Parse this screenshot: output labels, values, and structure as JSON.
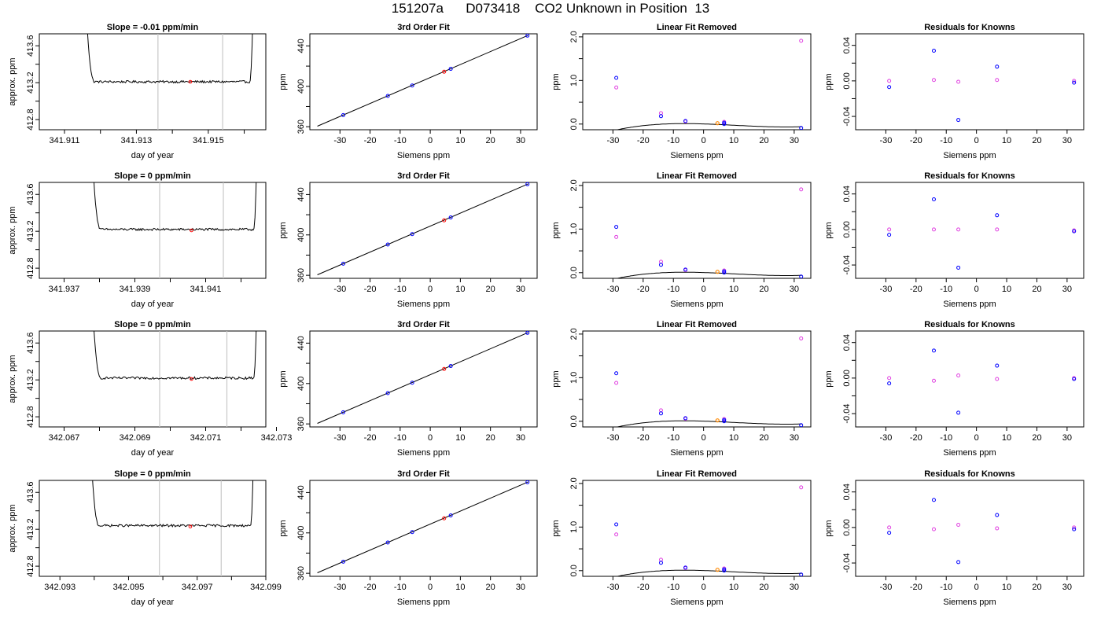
{
  "figure": {
    "title": "151207a      D073418    CO2 Unknown in Position  13",
    "colors": {
      "known": "#0000ff",
      "secondary": "#e040e0",
      "unknown": "#ff0000",
      "unknown_residual": "#ff8800",
      "line": "#000000",
      "marker_line": "#c8c8c8",
      "axis": "#000000"
    }
  },
  "chart_data": [
    {
      "type": "line",
      "panel": "trace",
      "row": 0,
      "title": "Slope =  -0.01  ppm/min",
      "xlabel": "day of year",
      "ylabel": "approx. ppm",
      "xlim": [
        341.9103,
        341.9166
      ],
      "ylim": [
        412.69,
        413.73
      ],
      "xticks": [
        341.911,
        341.912,
        341.913,
        341.914,
        341.915,
        341.916
      ],
      "xtick_labels": [
        "341.911",
        "",
        "341.913",
        "",
        "341.915",
        ""
      ],
      "yticks": [
        412.8,
        413.0,
        413.2,
        413.4,
        413.6
      ],
      "ytick_labels": [
        "412.8",
        "",
        "413.2",
        "",
        "413.6"
      ],
      "plateau": 413.21,
      "trace_x": [
        341.9115,
        341.9163
      ],
      "vlines": [
        341.9136,
        341.9154
      ],
      "unknown_point": [
        341.9145,
        413.21
      ]
    },
    {
      "type": "line",
      "panel": "trace",
      "row": 1,
      "title": "Slope =  0  ppm/min",
      "xlabel": "day of year",
      "ylabel": "approx. ppm",
      "xlim": [
        341.9363,
        341.9427
      ],
      "ylim": [
        412.69,
        413.73
      ],
      "xticks": [
        341.937,
        341.938,
        341.939,
        341.94,
        341.941,
        341.942
      ],
      "xtick_labels": [
        "341.937",
        "",
        "341.939",
        "",
        "341.941",
        ""
      ],
      "yticks": [
        412.8,
        413.0,
        413.2,
        413.4,
        413.6
      ],
      "ytick_labels": [
        "412.8",
        "",
        "413.2",
        "",
        "413.6"
      ],
      "plateau": 413.22,
      "trace_x": [
        341.9377,
        341.9425
      ],
      "vlines": [
        341.9397,
        341.9415
      ],
      "unknown_point": [
        341.9406,
        413.21
      ]
    },
    {
      "type": "line",
      "panel": "trace",
      "row": 2,
      "title": "Slope =  0  ppm/min",
      "xlabel": "day of year",
      "ylabel": "approx. ppm",
      "xlim": [
        342.0663,
        342.0727
      ],
      "ylim": [
        412.69,
        413.73
      ],
      "xticks": [
        342.067,
        342.068,
        342.069,
        342.07,
        342.071,
        342.072,
        342.073
      ],
      "xtick_labels": [
        "342.067",
        "",
        "342.069",
        "",
        "342.071",
        "",
        "342.073"
      ],
      "yticks": [
        412.8,
        413.0,
        413.2,
        413.4,
        413.6
      ],
      "ytick_labels": [
        "412.8",
        "",
        "413.2",
        "",
        "413.6"
      ],
      "plateau": 413.22,
      "trace_x": [
        342.0677,
        342.0725
      ],
      "vlines": [
        342.0697,
        342.0716
      ],
      "unknown_point": [
        342.0706,
        413.21
      ]
    },
    {
      "type": "line",
      "panel": "trace",
      "row": 3,
      "title": "Slope =  0  ppm/min",
      "xlabel": "day of year",
      "ylabel": "approx. ppm",
      "xlim": [
        342.0924,
        342.099
      ],
      "ylim": [
        412.69,
        413.73
      ],
      "xticks": [
        342.093,
        342.094,
        342.095,
        342.096,
        342.097,
        342.098,
        342.099
      ],
      "xtick_labels": [
        "342.093",
        "",
        "342.095",
        "",
        "342.097",
        "",
        "342.099"
      ],
      "yticks": [
        412.8,
        413.0,
        413.2,
        413.4,
        413.6
      ],
      "ytick_labels": [
        "412.8",
        "",
        "413.2",
        "",
        "413.6"
      ],
      "plateau": 413.24,
      "trace_x": [
        342.0938,
        342.0987
      ],
      "vlines": [
        342.0959,
        342.0977
      ],
      "unknown_point": [
        342.0968,
        413.23
      ]
    },
    {
      "type": "scatter",
      "panel": "fit",
      "rows": [
        0,
        1,
        2,
        3
      ],
      "title": "3rd Order Fit",
      "xlabel": "Siemens ppm",
      "ylabel": "ppm",
      "xlim": [
        -40.0,
        35.5
      ],
      "ylim": [
        357,
        452
      ],
      "xticks": [
        -30,
        -20,
        -10,
        0,
        10,
        20,
        30
      ],
      "yticks": [
        360,
        380,
        400,
        420,
        440
      ],
      "ytick_labels": [
        "360",
        "",
        "400",
        "",
        "440"
      ],
      "line": [
        [
          -37.5,
          360.5
        ],
        [
          32.5,
          450.5
        ]
      ],
      "knowns": [
        [
          -28.9,
          371.5
        ],
        [
          -14.1,
          390.5
        ],
        [
          -6.0,
          400.8
        ],
        [
          6.8,
          417.3
        ],
        [
          32.3,
          450.2
        ]
      ],
      "unknown": [
        [
          4.6,
          414.4
        ]
      ]
    },
    {
      "type": "scatter",
      "panel": "linear_removed",
      "row": 0,
      "title": "Linear Fit Removed",
      "xlabel": "Siemens ppm",
      "ylabel": "ppm",
      "xlim": [
        -40.0,
        35.5
      ],
      "ylim": [
        -0.13,
        2.07
      ],
      "xticks": [
        -30,
        -20,
        -10,
        0,
        10,
        20,
        30
      ],
      "yticks": [
        0.0,
        0.5,
        1.0,
        1.5,
        2.0
      ],
      "ytick_labels": [
        "0.0",
        "",
        "1.0",
        "",
        "2.0"
      ],
      "curve_coef": [
        0.003,
        -0.00212,
        -0.000125,
        3.98e-06
      ],
      "curve_xrange": [
        -37.5,
        32.5
      ],
      "knowns": [
        [
          -28.9,
          1.06
        ],
        [
          -14.1,
          0.18
        ],
        [
          -6.0,
          0.07
        ],
        [
          6.8,
          0.03
        ],
        [
          6.8,
          0.0
        ],
        [
          32.3,
          -0.09
        ]
      ],
      "secondary": [
        [
          -28.9,
          0.84
        ],
        [
          -14.1,
          0.25
        ],
        [
          -6.0,
          0.06
        ],
        [
          6.8,
          0.05
        ],
        [
          32.3,
          1.91
        ]
      ],
      "unknown": [
        [
          4.6,
          0.02
        ]
      ]
    },
    {
      "type": "scatter",
      "panel": "linear_removed",
      "row": 1,
      "title": "Linear Fit Removed",
      "xlabel": "Siemens ppm",
      "ylabel": "ppm",
      "xlim": [
        -40.0,
        35.5
      ],
      "ylim": [
        -0.13,
        2.07
      ],
      "xticks": [
        -30,
        -20,
        -10,
        0,
        10,
        20,
        30
      ],
      "yticks": [
        0.0,
        0.5,
        1.0,
        1.5,
        2.0
      ],
      "ytick_labels": [
        "0.0",
        "",
        "1.0",
        "",
        "2.0"
      ],
      "curve_coef": [
        0.003,
        -0.00212,
        -0.000125,
        3.98e-06
      ],
      "curve_xrange": [
        -37.5,
        32.5
      ],
      "knowns": [
        [
          -28.9,
          1.05
        ],
        [
          -14.1,
          0.18
        ],
        [
          -6.0,
          0.07
        ],
        [
          6.8,
          0.03
        ],
        [
          6.8,
          0.0
        ],
        [
          32.3,
          -0.09
        ]
      ],
      "secondary": [
        [
          -28.9,
          0.82
        ],
        [
          -14.1,
          0.25
        ],
        [
          -6.0,
          0.06
        ],
        [
          6.8,
          0.05
        ],
        [
          32.3,
          1.91
        ]
      ],
      "unknown": [
        [
          4.6,
          0.02
        ]
      ]
    },
    {
      "type": "scatter",
      "panel": "linear_removed",
      "row": 2,
      "title": "Linear Fit Removed",
      "xlabel": "Siemens ppm",
      "ylabel": "ppm",
      "xlim": [
        -40.0,
        35.5
      ],
      "ylim": [
        -0.13,
        2.07
      ],
      "xticks": [
        -30,
        -20,
        -10,
        0,
        10,
        20,
        30
      ],
      "yticks": [
        0.0,
        0.5,
        1.0,
        1.5,
        2.0
      ],
      "ytick_labels": [
        "0.0",
        "",
        "1.0",
        "",
        "2.0"
      ],
      "curve_coef": [
        0.003,
        -0.00212,
        -0.000125,
        3.98e-06
      ],
      "curve_xrange": [
        -37.5,
        32.5
      ],
      "knowns": [
        [
          -28.9,
          1.1
        ],
        [
          -14.1,
          0.18
        ],
        [
          -6.0,
          0.07
        ],
        [
          6.8,
          0.03
        ],
        [
          6.8,
          0.0
        ],
        [
          32.3,
          -0.09
        ]
      ],
      "secondary": [
        [
          -28.9,
          0.88
        ],
        [
          -14.1,
          0.25
        ],
        [
          -6.0,
          0.06
        ],
        [
          6.8,
          0.05
        ],
        [
          32.3,
          1.9
        ]
      ],
      "unknown": [
        [
          4.6,
          0.02
        ]
      ]
    },
    {
      "type": "scatter",
      "panel": "linear_removed",
      "row": 3,
      "title": "Linear Fit Removed",
      "xlabel": "Siemens ppm",
      "ylabel": "ppm",
      "xlim": [
        -40.0,
        35.5
      ],
      "ylim": [
        -0.13,
        2.07
      ],
      "xticks": [
        -30,
        -20,
        -10,
        0,
        10,
        20,
        30
      ],
      "yticks": [
        0.0,
        0.5,
        1.0,
        1.5,
        2.0
      ],
      "ytick_labels": [
        "0.0",
        "",
        "1.0",
        "",
        "2.0"
      ],
      "curve_coef": [
        0.003,
        -0.00212,
        -0.000125,
        3.98e-06
      ],
      "curve_xrange": [
        -37.5,
        32.5
      ],
      "knowns": [
        [
          -28.9,
          1.06
        ],
        [
          -14.1,
          0.18
        ],
        [
          -6.0,
          0.07
        ],
        [
          6.8,
          0.03
        ],
        [
          6.8,
          0.0
        ],
        [
          32.3,
          -0.09
        ]
      ],
      "secondary": [
        [
          -28.9,
          0.83
        ],
        [
          -14.1,
          0.25
        ],
        [
          -6.0,
          0.06
        ],
        [
          6.8,
          0.05
        ],
        [
          32.3,
          1.91
        ]
      ],
      "unknown": [
        [
          4.6,
          0.02
        ]
      ]
    },
    {
      "type": "scatter",
      "panel": "residuals",
      "row": 0,
      "title": "Residuals for Knowns",
      "xlabel": "Siemens ppm",
      "ylabel": "ppm",
      "xlim": [
        -40.0,
        35.5
      ],
      "ylim": [
        -0.055,
        0.053
      ],
      "xticks": [
        -30,
        -20,
        -10,
        0,
        10,
        20,
        30
      ],
      "yticks": [
        -0.04,
        -0.02,
        0.0,
        0.02,
        0.04
      ],
      "ytick_labels": [
        "-0.04",
        "",
        "0.00",
        "",
        "0.04"
      ],
      "knowns": [
        [
          -28.9,
          -0.007
        ],
        [
          -14.1,
          0.034
        ],
        [
          -6.0,
          -0.044
        ],
        [
          6.8,
          0.016
        ],
        [
          32.3,
          -0.002
        ]
      ],
      "secondary": [
        [
          -28.9,
          0.0
        ],
        [
          -14.1,
          0.001
        ],
        [
          -6.0,
          -0.001
        ],
        [
          6.8,
          0.001
        ],
        [
          32.3,
          0.0
        ]
      ]
    },
    {
      "type": "scatter",
      "panel": "residuals",
      "row": 1,
      "title": "Residuals for Knowns",
      "xlabel": "Siemens ppm",
      "ylabel": "ppm",
      "xlim": [
        -40.0,
        35.5
      ],
      "ylim": [
        -0.055,
        0.053
      ],
      "xticks": [
        -30,
        -20,
        -10,
        0,
        10,
        20,
        30
      ],
      "yticks": [
        -0.04,
        -0.02,
        0.0,
        0.02,
        0.04
      ],
      "ytick_labels": [
        "-0.04",
        "",
        "0.00",
        "",
        "0.04"
      ],
      "knowns": [
        [
          -28.9,
          -0.006
        ],
        [
          -14.1,
          0.034
        ],
        [
          -6.0,
          -0.043
        ],
        [
          6.8,
          0.016
        ],
        [
          32.3,
          -0.002
        ]
      ],
      "secondary": [
        [
          -28.9,
          0.0
        ],
        [
          -14.1,
          0.0
        ],
        [
          -6.0,
          0.0
        ],
        [
          6.8,
          0.0
        ],
        [
          32.3,
          -0.001
        ]
      ]
    },
    {
      "type": "scatter",
      "panel": "residuals",
      "row": 2,
      "title": "Residuals for Knowns",
      "xlabel": "Siemens ppm",
      "ylabel": "ppm",
      "xlim": [
        -40.0,
        35.5
      ],
      "ylim": [
        -0.055,
        0.053
      ],
      "xticks": [
        -30,
        -20,
        -10,
        0,
        10,
        20,
        30
      ],
      "yticks": [
        -0.04,
        -0.02,
        0.0,
        0.02,
        0.04
      ],
      "ytick_labels": [
        "-0.04",
        "",
        "0.00",
        "",
        "0.04"
      ],
      "knowns": [
        [
          -28.9,
          -0.006
        ],
        [
          -14.1,
          0.031
        ],
        [
          -6.0,
          -0.039
        ],
        [
          6.8,
          0.014
        ],
        [
          32.3,
          -0.001
        ]
      ],
      "secondary": [
        [
          -28.9,
          0.0
        ],
        [
          -14.1,
          -0.003
        ],
        [
          -6.0,
          0.003
        ],
        [
          6.8,
          -0.001
        ],
        [
          32.3,
          0.0
        ]
      ]
    },
    {
      "type": "scatter",
      "panel": "residuals",
      "row": 3,
      "title": "Residuals for Knowns",
      "xlabel": "Siemens ppm",
      "ylabel": "ppm",
      "xlim": [
        -40.0,
        35.5
      ],
      "ylim": [
        -0.055,
        0.053
      ],
      "xticks": [
        -30,
        -20,
        -10,
        0,
        10,
        20,
        30
      ],
      "yticks": [
        -0.04,
        -0.02,
        0.0,
        0.02,
        0.04
      ],
      "ytick_labels": [
        "-0.04",
        "",
        "0.00",
        "",
        "0.04"
      ],
      "knowns": [
        [
          -28.9,
          -0.006
        ],
        [
          -14.1,
          0.031
        ],
        [
          -6.0,
          -0.039
        ],
        [
          6.8,
          0.014
        ],
        [
          32.3,
          -0.002
        ]
      ],
      "secondary": [
        [
          -28.9,
          0.0
        ],
        [
          -14.1,
          -0.002
        ],
        [
          -6.0,
          0.003
        ],
        [
          6.8,
          -0.001
        ],
        [
          32.3,
          0.0
        ]
      ]
    }
  ]
}
